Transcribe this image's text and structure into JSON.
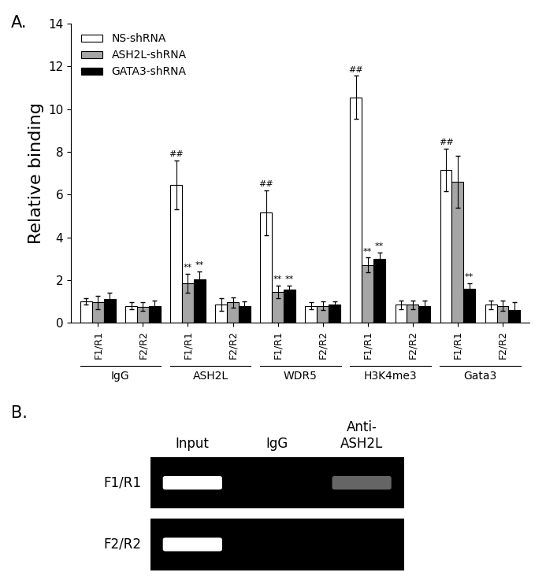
{
  "chart_data": {
    "type": "bar",
    "panel_label": "A.",
    "y_label": "Relative binding",
    "categories": [
      "F1/R1",
      "F2/R2",
      "F1/R1",
      "F2/R2",
      "F1/R1",
      "F2/R2",
      "F1/R1",
      "F2/R2",
      "F1/R1",
      "F2/R2"
    ],
    "groups": [
      "IgG",
      "ASH2L",
      "WDR5",
      "H3K4me3",
      "Gata3"
    ],
    "series": [
      {
        "name": "NS-shRNA",
        "color": "#ffffff",
        "values": [
          1.0,
          0.8,
          6.45,
          0.85,
          5.15,
          0.8,
          10.55,
          0.85,
          7.15,
          0.85
        ],
        "errors": [
          0.15,
          0.15,
          1.15,
          0.3,
          1.05,
          0.15,
          1.0,
          0.2,
          1.0,
          0.2
        ],
        "significance": [
          null,
          null,
          "##",
          null,
          "##",
          null,
          "##",
          null,
          "##",
          null
        ]
      },
      {
        "name": "ASH2L-shRNA",
        "color": "#a6a6a6",
        "values": [
          0.95,
          0.75,
          1.85,
          0.95,
          1.45,
          0.8,
          2.7,
          0.85,
          6.6,
          0.8
        ],
        "errors": [
          0.3,
          0.2,
          0.45,
          0.25,
          0.3,
          0.2,
          0.35,
          0.2,
          1.2,
          0.25
        ],
        "significance": [
          null,
          null,
          "**",
          null,
          "**",
          null,
          "**",
          null,
          null,
          null
        ]
      },
      {
        "name": "GATA3-shRNA",
        "color": "#000000",
        "values": [
          1.1,
          0.8,
          2.05,
          0.8,
          1.55,
          0.85,
          3.0,
          0.8,
          1.6,
          0.6
        ],
        "errors": [
          0.3,
          0.25,
          0.35,
          0.2,
          0.2,
          0.15,
          0.3,
          0.25,
          0.25,
          0.35
        ],
        "significance": [
          null,
          null,
          "**",
          null,
          "**",
          null,
          "**",
          null,
          "**",
          null
        ]
      }
    ],
    "ylim": [
      0,
      14
    ],
    "yticks": [
      0,
      2,
      4,
      6,
      8,
      10,
      12,
      14
    ],
    "legend": "upper left",
    "grid": false
  },
  "panel_b": {
    "panel_label": "B.",
    "columns": [
      "Input",
      "IgG",
      "Anti-\nASH2L"
    ],
    "rows": [
      "F1/R1",
      "F2/R2"
    ],
    "band_intensity": [
      [
        1.0,
        0.0,
        0.4
      ],
      [
        1.0,
        0.0,
        0.0
      ]
    ]
  }
}
